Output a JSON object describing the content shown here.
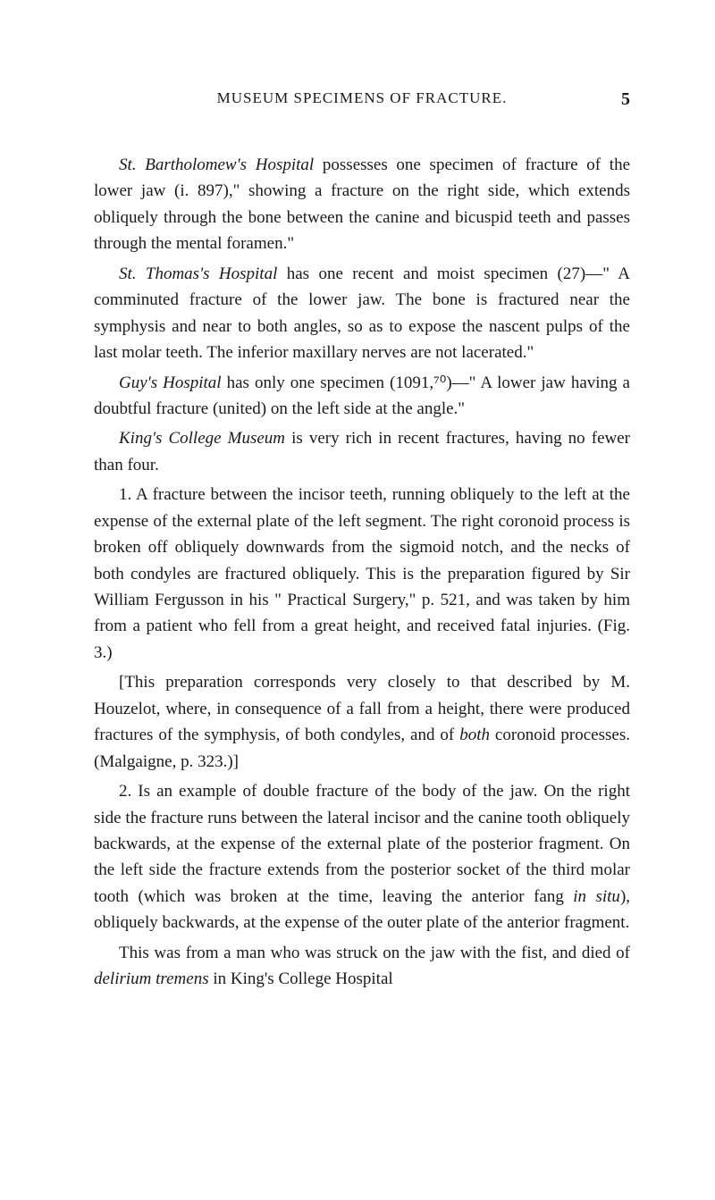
{
  "page": {
    "header_title": "MUSEUM SPECIMENS OF FRACTURE.",
    "page_number": "5"
  },
  "paragraphs": {
    "p1_prefix": "St. Bartholomew's Hospital",
    "p1_body": " possesses one specimen of fracture of the lower jaw (i. 897),\" showing a fracture on the right side, which extends obliquely through the bone between the canine and bicuspid teeth and passes through the mental foramen.\"",
    "p2_prefix": "St. Thomas's Hospital",
    "p2_body": " has one recent and moist specimen (27)—\" A comminuted fracture of the lower jaw. The bone is fractured near the symphysis and near to both angles, so as to expose the nascent pulps of the last molar teeth. The inferior maxillary nerves are not lacerated.\"",
    "p3_prefix": "Guy's Hospital",
    "p3_body": " has only one specimen (1091,⁷⁰)—\" A lower jaw having a doubtful fracture (united) on the left side at the angle.\"",
    "p4_prefix": "King's College Museum",
    "p4_body": " is very rich in recent fractures, having no fewer than four.",
    "item1": "1. A fracture between the incisor teeth, running obliquely to the left at the expense of the external plate of the left segment. The right coronoid process is broken off obliquely downwards from the sigmoid notch, and the necks of both condyles are fractured obliquely. This is the preparation figured by Sir William Fergusson in his \" Practical Surgery,\" p. 521, and was taken by him from a patient who fell from a great height, and received fatal injuries. (Fig. 3.)",
    "item1_bracket_a": "[This preparation corresponds very closely to that described by M. Houzelot, where, in consequence of a fall from a height, there were produced fractures of the symphysis, of both condyles, and of ",
    "item1_bracket_italic": "both",
    "item1_bracket_b": " coronoid processes. (Malgaigne, p. 323.)]",
    "item2": "2. Is an example of double fracture of the body of the jaw. On the right side the fracture runs between the lateral incisor and the canine tooth obliquely backwards, at the expense of the external plate of the posterior fragment. On the left side the fracture extends from the posterior socket of the third molar tooth (which was broken at the time, leaving the anterior fang ",
    "item2_italic": "in situ",
    "item2_b": "), obliquely backwards, at the expense of the outer plate of the anterior fragment.",
    "p5_a": "This was from a man who was struck on the jaw with the fist, and died of ",
    "p5_italic": "delirium tremens",
    "p5_b": " in King's College Hospital"
  }
}
